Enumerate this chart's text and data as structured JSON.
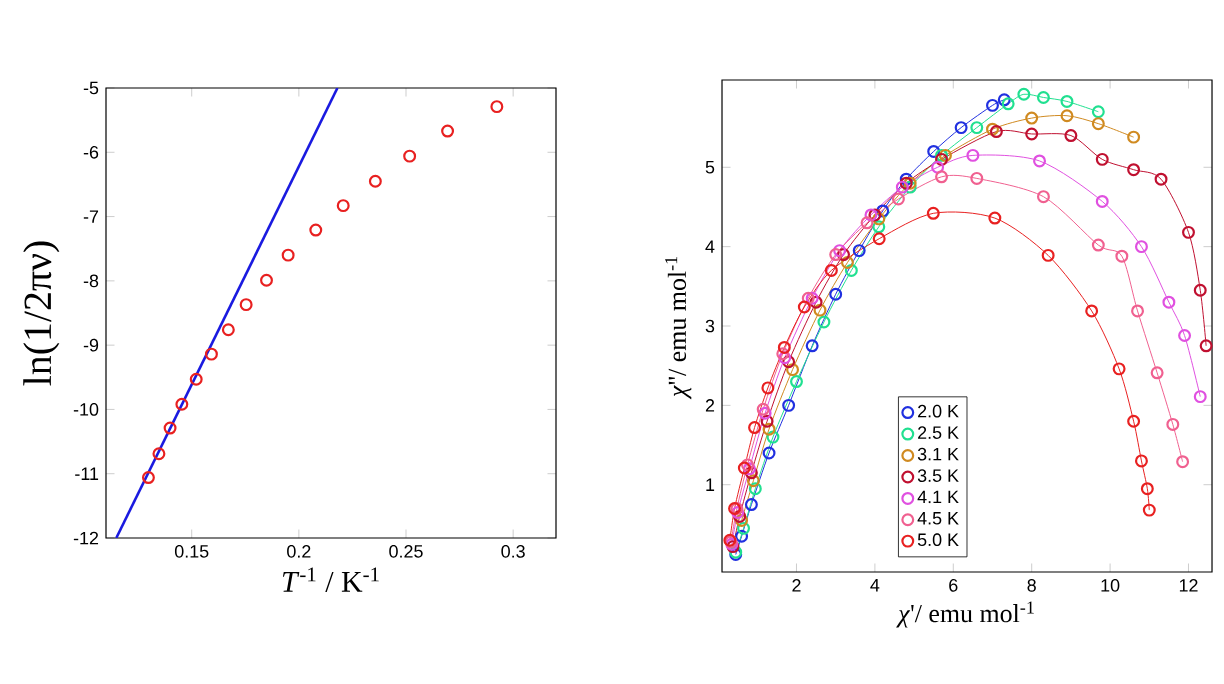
{
  "chart_data": [
    {
      "type": "scatter",
      "xlabel": "*T*$^{-1}$ / K$^{-1}$",
      "ylabel": "ln(1/2πν)",
      "xlim": [
        0.11,
        0.32
      ],
      "ylim": [
        -12,
        -5
      ],
      "xticks": [
        0.15,
        0.2,
        0.25,
        0.3
      ],
      "yticks": [
        -12,
        -11,
        -10,
        -9,
        -8,
        -7,
        -6,
        -5
      ],
      "marker": "circle",
      "series": [
        {
          "type": "scatter",
          "color": "#e82020",
          "x": [
            0.1298,
            0.1347,
            0.1399,
            0.1454,
            0.1521,
            0.1592,
            0.1671,
            0.1754,
            0.1849,
            0.195,
            0.2079,
            0.2207,
            0.2357,
            0.2517,
            0.2694,
            0.2924
          ],
          "values": [
            -11.06,
            -10.69,
            -10.29,
            -9.92,
            -9.53,
            -9.14,
            -8.76,
            -8.37,
            -7.99,
            -7.6,
            -7.21,
            -6.83,
            -6.45,
            -6.06,
            -5.67,
            -5.29
          ]
        },
        {
          "type": "line",
          "marker": "none",
          "color": "#1a1ae0",
          "x": [
            0.1148,
            0.218
          ],
          "values": [
            -12,
            -5
          ]
        }
      ]
    },
    {
      "type": "line",
      "xlabel": "*χ*'/ emu mol$^{-1}$",
      "ylabel": "*χ*''/ emu mol$^{-1}$",
      "xlim": [
        0.1,
        12.6
      ],
      "ylim": [
        -0.1,
        6.1
      ],
      "xticks": [
        2,
        4,
        6,
        8,
        10,
        12
      ],
      "yticks": [
        1,
        2,
        3,
        4,
        5
      ],
      "marker": "circle",
      "legend": "bottom",
      "series": [
        {
          "name": "2.0 K",
          "color": "#2030e0",
          "x": [
            0.45,
            0.6,
            0.85,
            1.3,
            1.8,
            2.4,
            3.0,
            3.6,
            4.2,
            4.8,
            5.5,
            6.2,
            7.0,
            7.3
          ],
          "values": [
            0.12,
            0.35,
            0.75,
            1.4,
            2.0,
            2.75,
            3.4,
            3.95,
            4.45,
            4.85,
            5.2,
            5.5,
            5.78,
            5.85
          ]
        },
        {
          "name": "2.5 K",
          "color": "#20e090",
          "x": [
            0.45,
            0.65,
            0.95,
            1.4,
            2.0,
            2.7,
            3.4,
            4.1,
            4.9,
            5.7,
            6.6,
            7.4,
            7.8,
            8.3,
            8.9,
            9.7
          ],
          "values": [
            0.15,
            0.45,
            0.95,
            1.6,
            2.3,
            3.05,
            3.7,
            4.25,
            4.75,
            5.15,
            5.5,
            5.8,
            5.92,
            5.88,
            5.83,
            5.7
          ]
        },
        {
          "name": "3.1 K",
          "color": "#d08a20",
          "x": [
            0.6,
            0.9,
            1.3,
            1.9,
            2.6,
            3.3,
            4.1,
            4.9,
            5.8,
            7.0,
            8.0,
            8.9,
            9.7,
            10.6
          ],
          "values": [
            0.55,
            1.05,
            1.7,
            2.45,
            3.2,
            3.8,
            4.35,
            4.8,
            5.15,
            5.48,
            5.62,
            5.65,
            5.55,
            5.38
          ]
        },
        {
          "name": "3.5 K",
          "color": "#c01030",
          "x": [
            0.38,
            0.55,
            0.85,
            1.25,
            1.8,
            2.5,
            3.2,
            4.0,
            4.8,
            5.7,
            7.1,
            8.0,
            9.0,
            9.8,
            10.6,
            11.3,
            12.0,
            12.3,
            12.45
          ],
          "values": [
            0.22,
            0.6,
            1.15,
            1.8,
            2.55,
            3.3,
            3.9,
            4.4,
            4.8,
            5.1,
            5.45,
            5.42,
            5.4,
            5.1,
            4.97,
            4.85,
            4.18,
            3.45,
            2.75
          ]
        },
        {
          "name": "4.1 K",
          "color": "#e050e0",
          "x": [
            0.35,
            0.5,
            0.8,
            1.2,
            1.7,
            2.4,
            3.1,
            3.9,
            4.7,
            5.6,
            6.5,
            8.2,
            9.8,
            10.8,
            11.5,
            11.9,
            12.3
          ],
          "values": [
            0.25,
            0.65,
            1.2,
            1.9,
            2.6,
            3.35,
            3.95,
            4.4,
            4.75,
            5.0,
            5.15,
            5.08,
            4.57,
            4.0,
            3.3,
            2.88,
            2.11
          ]
        },
        {
          "name": "4.5 K",
          "color": "#f06090",
          "x": [
            0.33,
            0.48,
            0.75,
            1.15,
            1.65,
            2.3,
            3.0,
            3.8,
            4.6,
            5.7,
            6.6,
            8.3,
            9.7,
            10.3,
            10.7,
            11.2,
            11.6,
            11.85
          ],
          "values": [
            0.28,
            0.7,
            1.25,
            1.95,
            2.65,
            3.35,
            3.9,
            4.3,
            4.6,
            4.88,
            4.86,
            4.63,
            4.02,
            3.88,
            3.19,
            2.41,
            1.76,
            1.29
          ]
        },
        {
          "name": "5.0 K",
          "color": "#e82020",
          "x": [
            0.3,
            0.42,
            0.67,
            0.93,
            1.27,
            1.69,
            2.2,
            2.89,
            4.11,
            5.49,
            7.06,
            8.42,
            9.53,
            10.23,
            10.6,
            10.8,
            10.95,
            11.0
          ],
          "values": [
            0.3,
            0.7,
            1.21,
            1.72,
            2.22,
            2.73,
            3.24,
            3.7,
            4.1,
            4.42,
            4.36,
            3.89,
            3.19,
            2.46,
            1.8,
            1.3,
            0.95,
            0.68
          ]
        }
      ]
    }
  ]
}
